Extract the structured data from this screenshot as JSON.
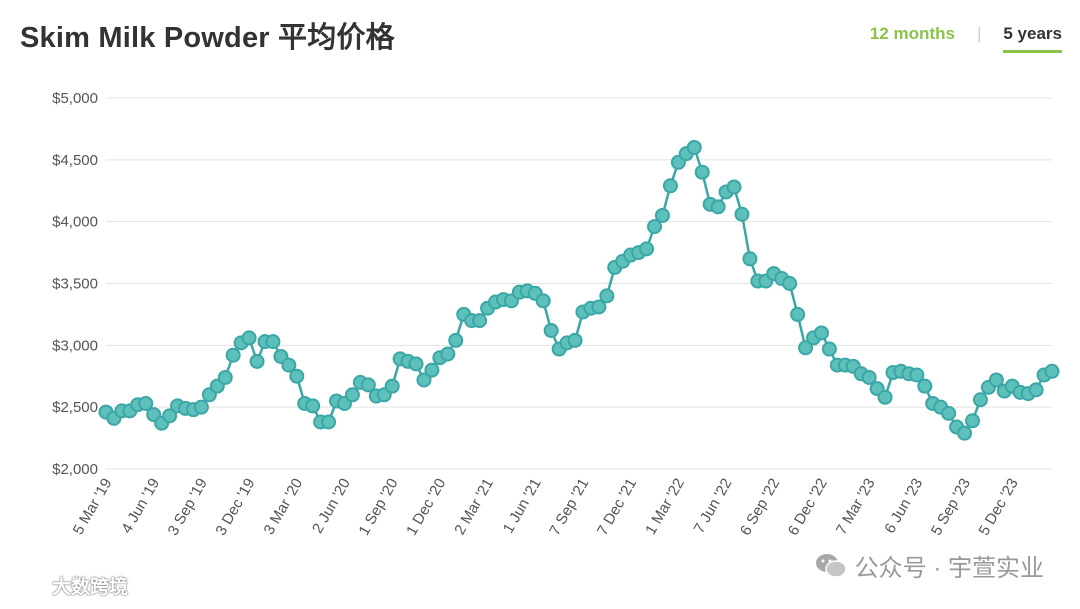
{
  "header": {
    "title": "Skim Milk Powder 平均价格",
    "tabs": [
      {
        "label": "12 months",
        "active": false
      },
      {
        "label": "5 years",
        "active": true
      }
    ],
    "accent_color": "#8bc34a"
  },
  "watermarks": {
    "left_text": "大数跨境",
    "right_text": "公众号 · 宇萱实业"
  },
  "chart_data": {
    "type": "line",
    "title": "Skim Milk Powder 平均价格",
    "xlabel": "",
    "ylabel": "",
    "ylim": [
      2000,
      5000
    ],
    "grid": true,
    "line_color": "#3aa6a6",
    "y_ticks": [
      {
        "value": 2000,
        "label": "$2,000"
      },
      {
        "value": 2500,
        "label": "$2,500"
      },
      {
        "value": 3000,
        "label": "$3,000"
      },
      {
        "value": 3500,
        "label": "$3,500"
      },
      {
        "value": 4000,
        "label": "$4,000"
      },
      {
        "value": 4500,
        "label": "$4,500"
      },
      {
        "value": 5000,
        "label": "$5,000"
      }
    ],
    "x_ticks": [
      {
        "index": 0,
        "label": "5 Mar '19"
      },
      {
        "index": 6,
        "label": "4 Jun '19"
      },
      {
        "index": 12,
        "label": "3 Sep '19"
      },
      {
        "index": 18,
        "label": "3 Dec '19"
      },
      {
        "index": 24,
        "label": "3 Mar '20"
      },
      {
        "index": 30,
        "label": "2 Jun '20"
      },
      {
        "index": 36,
        "label": "1 Sep '20"
      },
      {
        "index": 42,
        "label": "1 Dec '20"
      },
      {
        "index": 48,
        "label": "2 Mar '21"
      },
      {
        "index": 54,
        "label": "1 Jun '21"
      },
      {
        "index": 60,
        "label": "7 Sep '21"
      },
      {
        "index": 66,
        "label": "7 Dec '21"
      },
      {
        "index": 72,
        "label": "1 Mar '22"
      },
      {
        "index": 78,
        "label": "7 Jun '22"
      },
      {
        "index": 84,
        "label": "6 Sep '22"
      },
      {
        "index": 90,
        "label": "6 Dec '22"
      },
      {
        "index": 96,
        "label": "7 Mar '23"
      },
      {
        "index": 102,
        "label": "6 Jun '23"
      },
      {
        "index": 108,
        "label": "5 Sep '23"
      },
      {
        "index": 114,
        "label": "5 Dec '23"
      }
    ],
    "values": [
      2460,
      2410,
      2470,
      2470,
      2520,
      2530,
      2440,
      2370,
      2430,
      2510,
      2490,
      2480,
      2500,
      2600,
      2670,
      2740,
      2920,
      3020,
      3060,
      2870,
      3030,
      3030,
      2910,
      2840,
      2750,
      2530,
      2510,
      2380,
      2380,
      2550,
      2530,
      2600,
      2700,
      2680,
      2590,
      2600,
      2670,
      2890,
      2870,
      2850,
      2720,
      2800,
      2900,
      2930,
      3040,
      3250,
      3200,
      3200,
      3300,
      3350,
      3370,
      3360,
      3430,
      3440,
      3420,
      3360,
      3120,
      2970,
      3020,
      3040,
      3270,
      3300,
      3310,
      3400,
      3630,
      3680,
      3730,
      3750,
      3780,
      3960,
      4050,
      4290,
      4480,
      4550,
      4600,
      4400,
      4140,
      4120,
      4240,
      4280,
      4060,
      3700,
      3520,
      3520,
      3580,
      3540,
      3500,
      3250,
      2980,
      3060,
      3100,
      2970,
      2840,
      2840,
      2830,
      2770,
      2740,
      2650,
      2580,
      2780,
      2790,
      2770,
      2760,
      2670,
      2530,
      2500,
      2450,
      2340,
      2290,
      2390,
      2560,
      2660,
      2720,
      2630,
      2670,
      2620,
      2610,
      2640,
      2760,
      2790
    ]
  }
}
